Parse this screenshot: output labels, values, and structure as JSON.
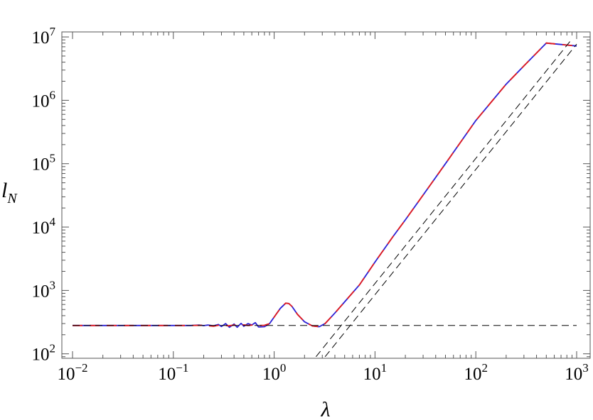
{
  "chart_data": {
    "type": "line",
    "xlabel": "λ",
    "ylabel": "l",
    "ylabel_subscript": "N",
    "xscale": "log",
    "yscale": "log",
    "xlim": [
      0.01,
      1000
    ],
    "ylim": [
      85,
      12000000
    ],
    "x_ticks": [
      {
        "value": 0.01,
        "base": "10",
        "exp": "−2"
      },
      {
        "value": 0.1,
        "base": "10",
        "exp": "−1"
      },
      {
        "value": 1,
        "base": "10",
        "exp": "0"
      },
      {
        "value": 10,
        "base": "10",
        "exp": "1"
      },
      {
        "value": 100,
        "base": "10",
        "exp": "2"
      },
      {
        "value": 1000,
        "base": "10",
        "exp": "3"
      }
    ],
    "y_ticks": [
      {
        "value": 100,
        "base": "10",
        "exp": "2"
      },
      {
        "value": 1000,
        "base": "10",
        "exp": "3"
      },
      {
        "value": 10000,
        "base": "10",
        "exp": "4"
      },
      {
        "value": 100000,
        "base": "10",
        "exp": "5"
      },
      {
        "value": 1000000,
        "base": "10",
        "exp": "6"
      },
      {
        "value": 10000000,
        "base": "10",
        "exp": "7"
      }
    ],
    "grid": false,
    "legend": "none",
    "series": [
      {
        "color": "#2a1fd6",
        "dash": "solid",
        "x": [
          0.01,
          0.05,
          0.1,
          0.15,
          0.18,
          0.2,
          0.22,
          0.25,
          0.28,
          0.3,
          0.33,
          0.36,
          0.4,
          0.43,
          0.47,
          0.5,
          0.55,
          0.6,
          0.65,
          0.7,
          0.8,
          0.9,
          1.0,
          1.15,
          1.3,
          1.4,
          1.5,
          1.7,
          2.0,
          2.4,
          2.8,
          3.2,
          4.0,
          5.0,
          7.0,
          10,
          15,
          20,
          30,
          50,
          100,
          200,
          300,
          500,
          1000
        ],
        "y": [
          280,
          280,
          280,
          280,
          285,
          278,
          285,
          276,
          290,
          270,
          300,
          262,
          295,
          262,
          302,
          272,
          300,
          285,
          310,
          265,
          268,
          300,
          380,
          520,
          630,
          620,
          560,
          420,
          320,
          275,
          268,
          300,
          440,
          660,
          1220,
          2800,
          7000,
          13000,
          32000,
          100000,
          480000,
          1800000,
          3500000,
          8000000,
          7200000
        ]
      },
      {
        "color": "#e31a1c",
        "dash": "dashed",
        "x": [
          0.01,
          0.05,
          0.1,
          0.15,
          0.2,
          0.25,
          0.3,
          0.35,
          0.4,
          0.45,
          0.5,
          0.55,
          0.6,
          0.7,
          0.8,
          0.9,
          1.0,
          1.15,
          1.3,
          1.4,
          1.5,
          1.7,
          2.0,
          2.4,
          2.8,
          3.2,
          4.0,
          5.0,
          7.0,
          10,
          15,
          20,
          30,
          50,
          100,
          200,
          300,
          500,
          1000
        ],
        "y": [
          280,
          280,
          280,
          280,
          282,
          272,
          288,
          276,
          285,
          278,
          286,
          280,
          284,
          280,
          282,
          300,
          380,
          520,
          630,
          620,
          560,
          420,
          320,
          275,
          268,
          300,
          440,
          660,
          1220,
          2800,
          7000,
          13000,
          32000,
          100000,
          480000,
          1800000,
          3500000,
          8000000,
          7200000
        ]
      },
      {
        "color": "#000000",
        "dash": "asymptote",
        "x": [
          0.01,
          1000
        ],
        "y": [
          280,
          280
        ]
      },
      {
        "color": "#000000",
        "dash": "asymptote",
        "x": [
          2.6,
          900
        ],
        "y": [
          90,
          9300000
        ]
      },
      {
        "color": "#000000",
        "dash": "asymptote",
        "x": [
          3.2,
          1000
        ],
        "y": [
          90,
          7700000
        ]
      }
    ]
  }
}
